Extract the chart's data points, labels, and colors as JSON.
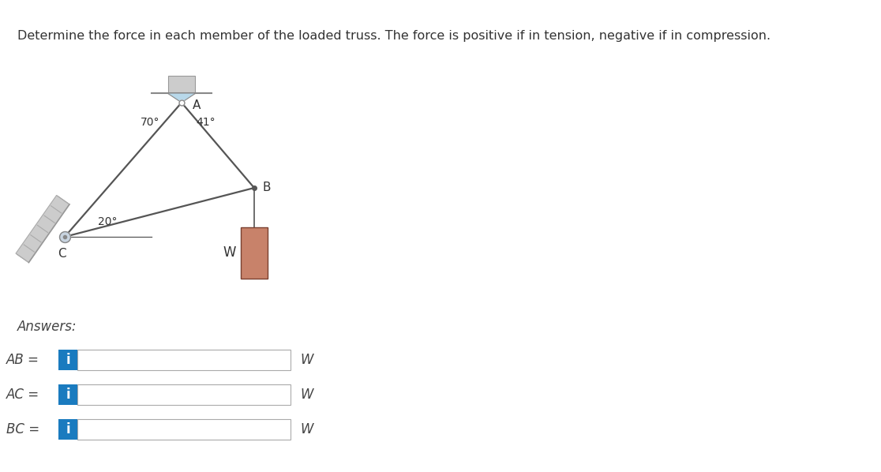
{
  "title": "Determine the force in each member of the loaded truss. The force is positive if in tension, negative if in compression.",
  "title_fontsize": 11.5,
  "title_color": "#333333",
  "bg_color": "#ffffff",
  "truss_A": [
    230,
    120
  ],
  "truss_B": [
    320,
    230
  ],
  "truss_C": [
    80,
    290
  ],
  "angle_A_left": "70°",
  "angle_A_right": "41°",
  "angle_C": "20°",
  "line_color": "#555555",
  "line_width": 1.6,
  "pin_color_A": "#b8d8ea",
  "wall_color": "#cccccc",
  "wall_hatch_color": "#aaaaaa",
  "weight_color_face": "#c8826a",
  "weight_color_edge": "#7a4030",
  "answers_label": "Answers:",
  "answer_rows": [
    "AB =",
    "AC =",
    "BC ="
  ],
  "i_color": "#1a7bbf",
  "box_border": "#aaaaaa",
  "label_fontsize": 11,
  "answers_fontsize": 12
}
